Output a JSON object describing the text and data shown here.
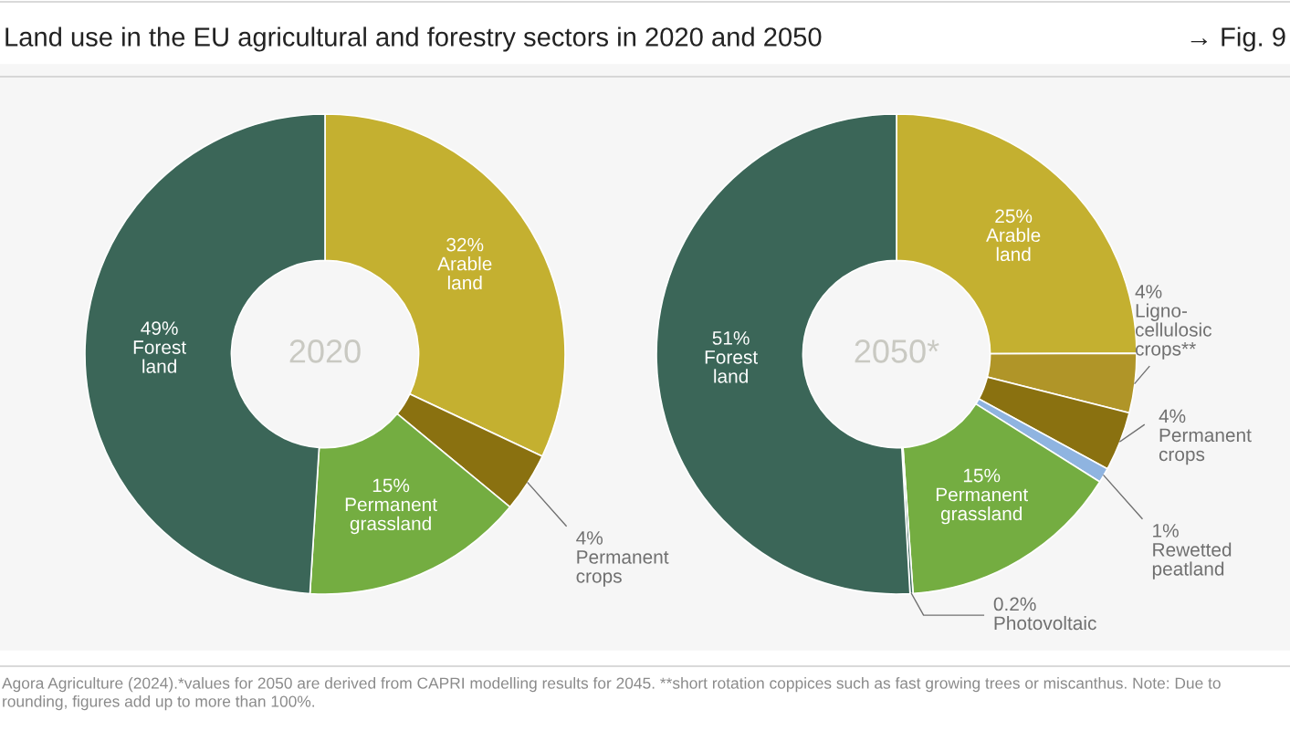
{
  "chart_data": [
    {
      "type": "donut",
      "title": "2020",
      "annotations": [
        "Land use in the EU agricultural and forestry sectors in 2020 and 2050",
        "→ Fig. 9"
      ],
      "categories": [
        "Arable\nland",
        "Permanent\ncrops",
        "Permanent\ngrassland",
        "Forest\nland"
      ],
      "values": [
        32,
        4,
        15,
        49
      ],
      "value_labels": [
        "32%",
        "4%",
        "15%",
        "49%"
      ],
      "colors": [
        "#c4b030",
        "#8a7110",
        "#74ad41",
        "#3b6658"
      ]
    },
    {
      "type": "donut",
      "title": "2050*",
      "annotations": [
        "Agora Agriculture (2024).*values for 2050 are derived from CAPRI modelling results for 2045. **short rotation coppices such as fast growing trees or miscanthus. Note: Due to rounding, figures add up to more than 100%."
      ],
      "categories": [
        "Arable\nland",
        "Ligno-\ncellulosic\ncrops**",
        "Permanent\ncrops",
        "Rewetted\npeatland",
        "Permanent\ngrassland",
        "Photovoltaic",
        "Forest\nland"
      ],
      "values": [
        25,
        4,
        4,
        1,
        15,
        0.2,
        51
      ],
      "value_labels": [
        "25%",
        "4%",
        "4%",
        "1%",
        "15%",
        "0.2%",
        "51%"
      ],
      "colors": [
        "#c4b030",
        "#b09528",
        "#8a7110",
        "#8fb4e0",
        "#74ad41",
        "#3b6658",
        "#3b6658"
      ]
    }
  ]
}
